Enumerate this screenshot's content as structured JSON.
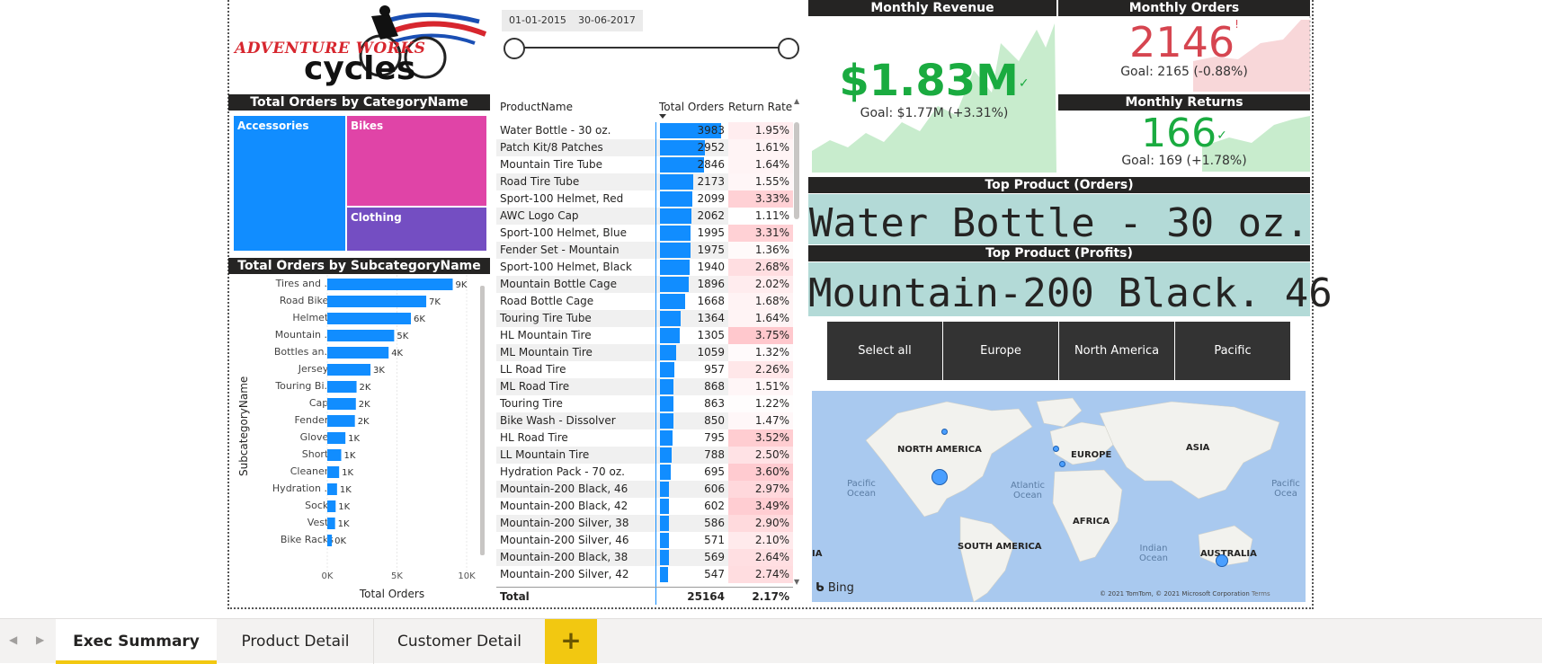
{
  "logo": {
    "line1": "ADVENTURE WORKS",
    "line2": "cycles"
  },
  "date_slicer": {
    "start": "01-01-2015",
    "end": "30-06-2017"
  },
  "treemap": {
    "title": "Total Orders by CategoryName",
    "items": [
      {
        "name": "Accessories",
        "color": "#118dff"
      },
      {
        "name": "Bikes",
        "color": "#e044a7"
      },
      {
        "name": "Clothing",
        "color": "#744ec2"
      }
    ]
  },
  "subcategory_chart": {
    "title": "Total Orders by SubcategoryName",
    "ylabel": "SubcategoryName",
    "xlabel": "Total Orders",
    "x_ticks": [
      "0K",
      "5K",
      "10K"
    ],
    "xlim": [
      0,
      10000
    ],
    "rows": [
      {
        "label": "Tires and ...",
        "value": 9000,
        "data_label": "9K"
      },
      {
        "label": "Road Bikes",
        "value": 7100,
        "data_label": "7K"
      },
      {
        "label": "Helmets",
        "value": 6000,
        "data_label": "6K"
      },
      {
        "label": "Mountain ...",
        "value": 4800,
        "data_label": "5K"
      },
      {
        "label": "Bottles an...",
        "value": 4400,
        "data_label": "4K"
      },
      {
        "label": "Jerseys",
        "value": 3100,
        "data_label": "3K"
      },
      {
        "label": "Touring Bi...",
        "value": 2100,
        "data_label": "2K"
      },
      {
        "label": "Caps",
        "value": 2050,
        "data_label": "2K"
      },
      {
        "label": "Fenders",
        "value": 1980,
        "data_label": "2K"
      },
      {
        "label": "Gloves",
        "value": 1300,
        "data_label": "1K"
      },
      {
        "label": "Shorts",
        "value": 1000,
        "data_label": "1K"
      },
      {
        "label": "Cleaners",
        "value": 850,
        "data_label": "1K"
      },
      {
        "label": "Hydration ...",
        "value": 700,
        "data_label": "1K"
      },
      {
        "label": "Socks",
        "value": 600,
        "data_label": "1K"
      },
      {
        "label": "Vests",
        "value": 560,
        "data_label": "1K"
      },
      {
        "label": "Bike Racks",
        "value": 330,
        "data_label": "0K"
      }
    ]
  },
  "product_table": {
    "headers": {
      "name": "ProductName",
      "orders": "Total Orders",
      "rate": "Return Rate"
    },
    "max_orders": 3983,
    "rows": [
      {
        "name": "Water Bottle - 30 oz.",
        "orders": 3983,
        "rate": "1.95%",
        "rate_val": 1.95
      },
      {
        "name": "Patch Kit/8 Patches",
        "orders": 2952,
        "rate": "1.61%",
        "rate_val": 1.61
      },
      {
        "name": "Mountain Tire Tube",
        "orders": 2846,
        "rate": "1.64%",
        "rate_val": 1.64
      },
      {
        "name": "Road Tire Tube",
        "orders": 2173,
        "rate": "1.55%",
        "rate_val": 1.55
      },
      {
        "name": "Sport-100 Helmet, Red",
        "orders": 2099,
        "rate": "3.33%",
        "rate_val": 3.33
      },
      {
        "name": "AWC Logo Cap",
        "orders": 2062,
        "rate": "1.11%",
        "rate_val": 1.11
      },
      {
        "name": "Sport-100 Helmet, Blue",
        "orders": 1995,
        "rate": "3.31%",
        "rate_val": 3.31
      },
      {
        "name": "Fender Set - Mountain",
        "orders": 1975,
        "rate": "1.36%",
        "rate_val": 1.36
      },
      {
        "name": "Sport-100 Helmet, Black",
        "orders": 1940,
        "rate": "2.68%",
        "rate_val": 2.68
      },
      {
        "name": "Mountain Bottle Cage",
        "orders": 1896,
        "rate": "2.02%",
        "rate_val": 2.02
      },
      {
        "name": "Road Bottle Cage",
        "orders": 1668,
        "rate": "1.68%",
        "rate_val": 1.68
      },
      {
        "name": "Touring Tire Tube",
        "orders": 1364,
        "rate": "1.64%",
        "rate_val": 1.64
      },
      {
        "name": "HL Mountain Tire",
        "orders": 1305,
        "rate": "3.75%",
        "rate_val": 3.75
      },
      {
        "name": "ML Mountain Tire",
        "orders": 1059,
        "rate": "1.32%",
        "rate_val": 1.32
      },
      {
        "name": "LL Road Tire",
        "orders": 957,
        "rate": "2.26%",
        "rate_val": 2.26
      },
      {
        "name": "ML Road Tire",
        "orders": 868,
        "rate": "1.51%",
        "rate_val": 1.51
      },
      {
        "name": "Touring Tire",
        "orders": 863,
        "rate": "1.22%",
        "rate_val": 1.22
      },
      {
        "name": "Bike Wash - Dissolver",
        "orders": 850,
        "rate": "1.47%",
        "rate_val": 1.47
      },
      {
        "name": "HL Road Tire",
        "orders": 795,
        "rate": "3.52%",
        "rate_val": 3.52
      },
      {
        "name": "LL Mountain Tire",
        "orders": 788,
        "rate": "2.50%",
        "rate_val": 2.5
      },
      {
        "name": "Hydration Pack - 70 oz.",
        "orders": 695,
        "rate": "3.60%",
        "rate_val": 3.6
      },
      {
        "name": "Mountain-200 Black, 46",
        "orders": 606,
        "rate": "2.97%",
        "rate_val": 2.97
      },
      {
        "name": "Mountain-200 Black, 42",
        "orders": 602,
        "rate": "3.49%",
        "rate_val": 3.49
      },
      {
        "name": "Mountain-200 Silver, 38",
        "orders": 586,
        "rate": "2.90%",
        "rate_val": 2.9
      },
      {
        "name": "Mountain-200 Silver, 46",
        "orders": 571,
        "rate": "2.10%",
        "rate_val": 2.1
      },
      {
        "name": "Mountain-200 Black, 38",
        "orders": 569,
        "rate": "2.64%",
        "rate_val": 2.64
      },
      {
        "name": "Mountain-200 Silver, 42",
        "orders": 547,
        "rate": "2.74%",
        "rate_val": 2.74
      }
    ],
    "total": {
      "label": "Total",
      "orders": "25164",
      "rate": "2.17%"
    }
  },
  "kpis": {
    "revenue": {
      "title": "Monthly Revenue",
      "value": "$1.83M",
      "goal": "Goal: $1.77M (+3.31%)",
      "color": "#1aab40"
    },
    "orders": {
      "title": "Monthly Orders",
      "value": "2146",
      "mark": "!",
      "goal": "Goal: 2165 (-0.88%)",
      "color": "#d64550"
    },
    "returns": {
      "title": "Monthly Returns",
      "value": "166",
      "goal": "Goal: 169 (+1.78%)",
      "color": "#1aab40"
    }
  },
  "top_orders": {
    "title": "Top Product (Orders)",
    "value": "Water Bottle - 30 oz."
  },
  "top_profits": {
    "title": "Top Product (Profits)",
    "value": "Mountain-200 Black. 46"
  },
  "region_slicer": [
    "Select all",
    "Europe",
    "North America",
    "Pacific"
  ],
  "map": {
    "labels": [
      "NORTH AMERICA",
      "EUROPE",
      "ASIA",
      "AFRICA",
      "SOUTH AMERICA",
      "AUSTRALIA",
      "IA"
    ],
    "oceans": [
      "Pacific Ocean",
      "Atlantic Ocean",
      "Indian Ocean",
      "Pacific Ocea"
    ],
    "bing": "Bing",
    "copyright": "© 2021 TomTom, © 2021 Microsoft Corporation",
    "terms": "Terms"
  },
  "tabs": [
    "Exec Summary",
    "Product Detail",
    "Customer Detail"
  ],
  "tab_add": "+",
  "nav": {
    "prev": "◀",
    "next": "▶"
  }
}
